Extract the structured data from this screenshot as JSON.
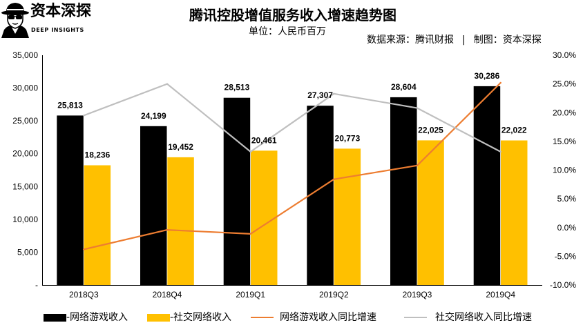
{
  "logo": {
    "name": "资本深探",
    "tagline": "DEEP INSIGHTS",
    "icon": "detective-face-icon"
  },
  "header": {
    "source": "数据来源：腾讯财报",
    "separator": "|",
    "credit": "制图：资本深探"
  },
  "colors": {
    "background": "#FFFFFF",
    "text": "#000000",
    "axis": "#000000"
  },
  "chart_data": {
    "type": "bar",
    "title": "腾讯控股增值服务收入增速趋势图",
    "subtitle": "单位：人民币百万",
    "categories": [
      "2018Q3",
      "2018Q4",
      "2019Q1",
      "2019Q2",
      "2019Q3",
      "2019Q4"
    ],
    "series": [
      {
        "name": "-网络游戏收入",
        "type": "bar",
        "axis": "left",
        "color": "#000000",
        "values": [
          25813,
          24199,
          28513,
          27307,
          28604,
          30286
        ],
        "data_labels": [
          "25,813",
          "24,199",
          "28,513",
          "27,307",
          "28,604",
          "30,286"
        ]
      },
      {
        "name": "-社交网络收入",
        "type": "bar",
        "axis": "left",
        "color": "#FFC000",
        "values": [
          18236,
          19452,
          20461,
          20773,
          22025,
          22022
        ],
        "data_labels": [
          "18,236",
          "19,452",
          "20,461",
          "20,773",
          "22,025",
          "22,022"
        ]
      },
      {
        "name": "网络游戏收入同比增速",
        "type": "line",
        "axis": "right",
        "color": "#ED7D31",
        "values": [
          -3.8,
          -0.4,
          -1.1,
          8.4,
          10.8,
          25.2
        ]
      },
      {
        "name": "社交网络收入同比增速",
        "type": "line",
        "axis": "right",
        "color": "#BFBFBF",
        "values": [
          19.5,
          25.0,
          13.2,
          23.3,
          20.8,
          13.2
        ]
      }
    ],
    "y_left": {
      "min": 0,
      "max": 35000,
      "step": 5000,
      "tick_labels": [
        "-",
        "5,000",
        "10,000",
        "15,000",
        "20,000",
        "25,000",
        "30,000",
        "35,000"
      ]
    },
    "y_right": {
      "min": -10,
      "max": 30,
      "step": 5,
      "tick_labels": [
        "-10.0%",
        "-5.0%",
        "0.0%",
        "5.0%",
        "10.0%",
        "15.0%",
        "20.0%",
        "25.0%",
        "30.0%"
      ]
    },
    "grid": false,
    "legend": "bottom"
  }
}
